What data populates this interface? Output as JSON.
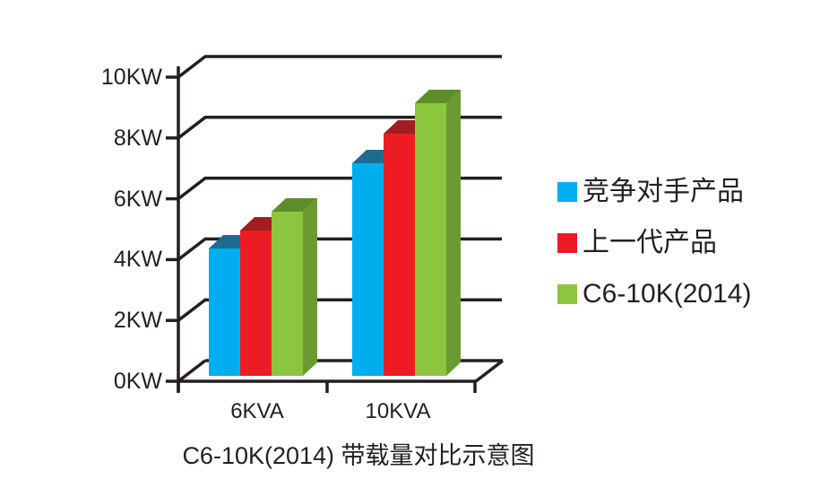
{
  "page": {
    "background": "#ffffff",
    "ink_color": "#231F20"
  },
  "chart_data": {
    "type": "bar",
    "style": "3d-column",
    "title": "C6-10K(2014) 带载量对比示意图",
    "categories": [
      "6KVA",
      "10KVA"
    ],
    "series": [
      {
        "key": "competitor-product",
        "name": "竞争对手产品",
        "color": "#00AEEF",
        "top_color": "#1D6C8F",
        "side_color": "#155A79",
        "values": [
          4.2,
          7.0
        ]
      },
      {
        "key": "previous-generation",
        "name": "上一代产品",
        "color": "#ED1C24",
        "top_color": "#A01D20",
        "side_color": "#8C1418",
        "values": [
          4.8,
          8.0
        ]
      },
      {
        "key": "c6-10k-2014",
        "name": "C6-10K(2014)",
        "color": "#8CC63F",
        "top_color": "#5E8C28",
        "side_color": "#6B9A33",
        "values": [
          5.4,
          9.0
        ]
      }
    ],
    "xlabel": "",
    "ylabel": "",
    "ylim": [
      0,
      10
    ],
    "yticks": [
      0,
      2,
      4,
      6,
      8,
      10
    ],
    "ytick_labels": [
      "0KW",
      "2KW",
      "4KW",
      "6KW",
      "8KW",
      "10KW"
    ],
    "values_unit": "KW",
    "grid": true,
    "legend_position": "right",
    "axis_color": "#231F20"
  }
}
